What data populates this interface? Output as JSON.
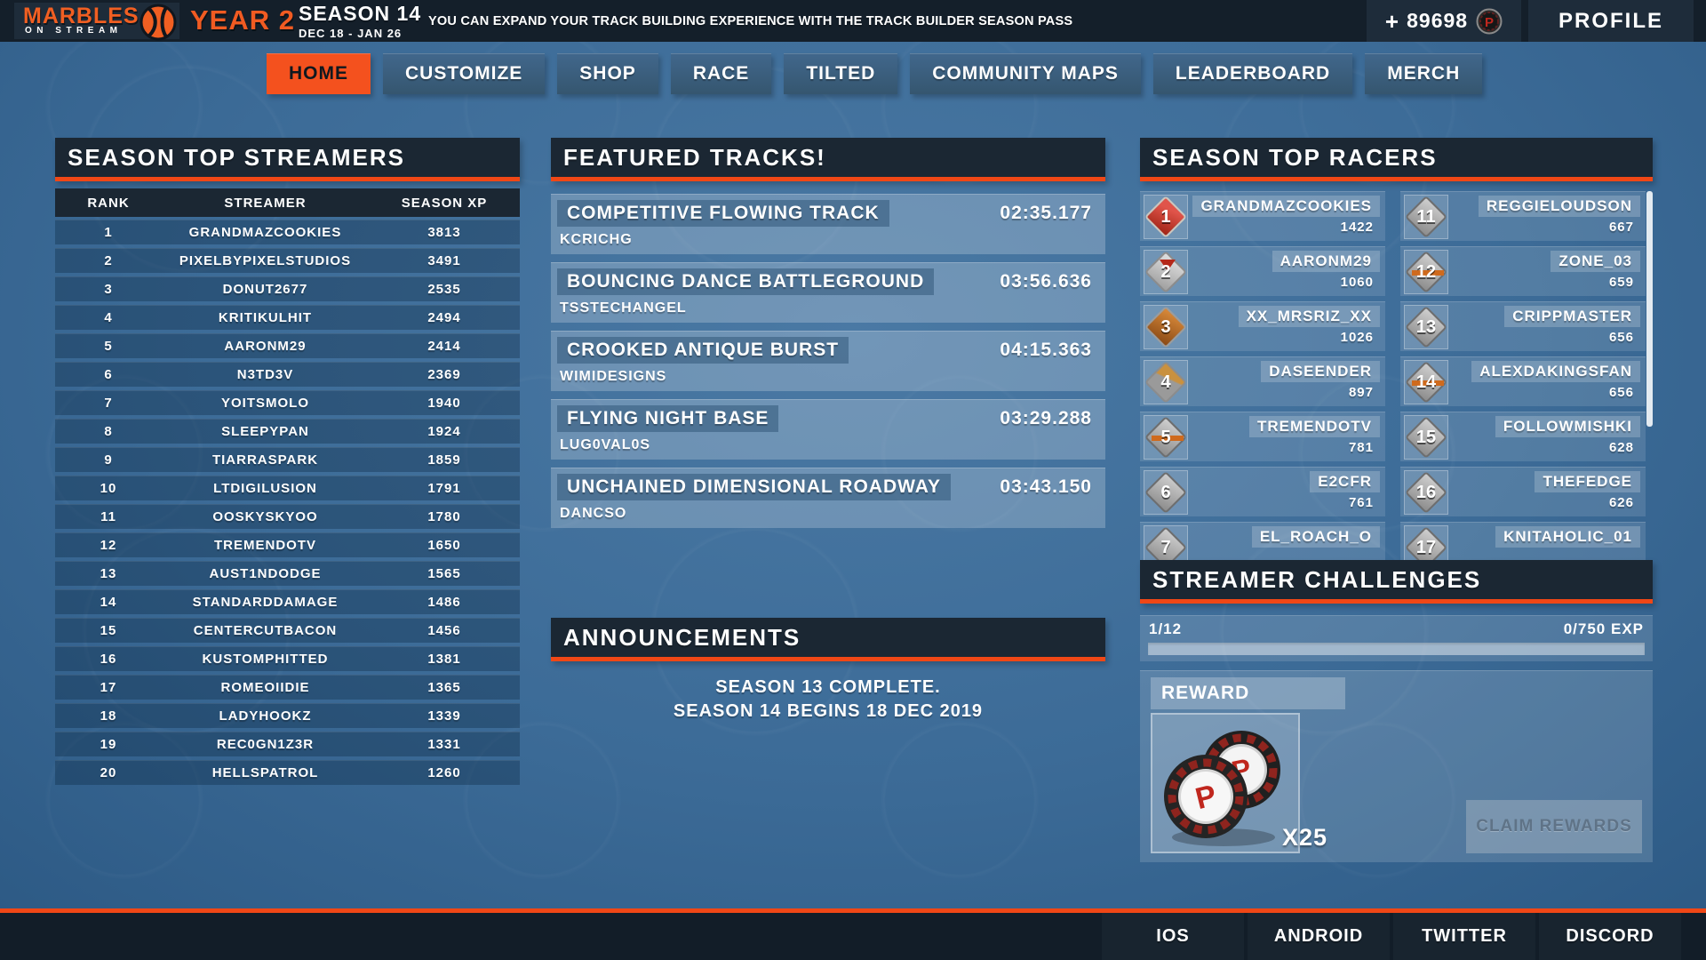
{
  "top_bar": {
    "logo_line1": "MARBLES",
    "logo_line2": "ON STREAM",
    "year": "YEAR 2",
    "season": "SEASON 14",
    "season_dates": "DEC 18 - JAN 26",
    "ticker": "YOU CAN EXPAND YOUR TRACK BUILDING EXPERIENCE WITH THE TRACK BUILDER SEASON PASS",
    "currency_plus": "+",
    "currency_amount": "89698",
    "profile_label": "PROFILE"
  },
  "nav": {
    "tabs": [
      {
        "label": "HOME",
        "active": true
      },
      {
        "label": "CUSTOMIZE",
        "active": false
      },
      {
        "label": "SHOP",
        "active": false
      },
      {
        "label": "RACE",
        "active": false
      },
      {
        "label": "TILTED",
        "active": false
      },
      {
        "label": "COMMUNITY MAPS",
        "active": false
      },
      {
        "label": "LEADERBOARD",
        "active": false
      },
      {
        "label": "MERCH",
        "active": false
      }
    ]
  },
  "streamers": {
    "title": "SEASON TOP STREAMERS",
    "columns": [
      "RANK",
      "STREAMER",
      "SEASON XP"
    ],
    "rows": [
      {
        "rank": "1",
        "name": "GRANDMAZCOOKIES",
        "xp": "3813"
      },
      {
        "rank": "2",
        "name": "PIXELBYPIXELSTUDIOS",
        "xp": "3491"
      },
      {
        "rank": "3",
        "name": "DONUT2677",
        "xp": "2535"
      },
      {
        "rank": "4",
        "name": "KRITIKULHIT",
        "xp": "2494"
      },
      {
        "rank": "5",
        "name": "AARONM29",
        "xp": "2414"
      },
      {
        "rank": "6",
        "name": "N3TD3V",
        "xp": "2369"
      },
      {
        "rank": "7",
        "name": "YOITSMOLO",
        "xp": "1940"
      },
      {
        "rank": "8",
        "name": "SLEEPYPAN",
        "xp": "1924"
      },
      {
        "rank": "9",
        "name": "TIARRASPARK",
        "xp": "1859"
      },
      {
        "rank": "10",
        "name": "LTDIGILUSION",
        "xp": "1791"
      },
      {
        "rank": "11",
        "name": "OOSKYSKYOO",
        "xp": "1780"
      },
      {
        "rank": "12",
        "name": "TREMENDOTV",
        "xp": "1650"
      },
      {
        "rank": "13",
        "name": "AUST1NDODGE",
        "xp": "1565"
      },
      {
        "rank": "14",
        "name": "STANDARDDAMAGE",
        "xp": "1486"
      },
      {
        "rank": "15",
        "name": "CENTERCUTBACON",
        "xp": "1456"
      },
      {
        "rank": "16",
        "name": "KUSTOMPHITTED",
        "xp": "1381"
      },
      {
        "rank": "17",
        "name": "ROMEOIIDIE",
        "xp": "1365"
      },
      {
        "rank": "18",
        "name": "LADYHOOKZ",
        "xp": "1339"
      },
      {
        "rank": "19",
        "name": "REC0GN1Z3R",
        "xp": "1331"
      },
      {
        "rank": "20",
        "name": "HELLSPATROL",
        "xp": "1260"
      }
    ]
  },
  "featured": {
    "title": "FEATURED TRACKS!",
    "tracks": [
      {
        "name": "COMPETITIVE FLOWING TRACK",
        "author": "KCRICHG",
        "time": "02:35.177"
      },
      {
        "name": "BOUNCING DANCE BATTLEGROUND",
        "author": "TSSTECHANGEL",
        "time": "03:56.636"
      },
      {
        "name": "CROOKED ANTIQUE BURST",
        "author": "WIMIDESIGNS",
        "time": "04:15.363"
      },
      {
        "name": "FLYING NIGHT BASE",
        "author": "LUG0VAL0S",
        "time": "03:29.288"
      },
      {
        "name": "UNCHAINED DIMENSIONAL ROADWAY",
        "author": "DANCSO",
        "time": "03:43.150"
      }
    ]
  },
  "announcements": {
    "title": "ANNOUNCEMENTS",
    "lines": [
      "SEASON 13 COMPLETE.",
      "SEASON 14 BEGINS 18 DEC 2019"
    ]
  },
  "racers": {
    "title": "SEASON TOP RACERS",
    "left": [
      {
        "rank": "1",
        "name": "GRANDMAZCOOKIES",
        "score": "1422",
        "badge": "red"
      },
      {
        "rank": "2",
        "name": "AARONM29",
        "score": "1060",
        "badge": "silver-red"
      },
      {
        "rank": "3",
        "name": "XX_MRSRIZ_XX",
        "score": "1026",
        "badge": "bronze"
      },
      {
        "rank": "4",
        "name": "DASEENDER",
        "score": "897",
        "badge": "bronze-gray"
      },
      {
        "rank": "5",
        "name": "TREMENDOTV",
        "score": "781",
        "badge": "gray-stripe"
      },
      {
        "rank": "6",
        "name": "E2CFR",
        "score": "761",
        "badge": "gray"
      },
      {
        "rank": "7",
        "name": "EL_ROACH_O",
        "score": "",
        "badge": "gray"
      }
    ],
    "right": [
      {
        "rank": "11",
        "name": "REGGIELOUDSON",
        "score": "667",
        "badge": "gray"
      },
      {
        "rank": "12",
        "name": "ZONE_03",
        "score": "659",
        "badge": "gray-stripe"
      },
      {
        "rank": "13",
        "name": "CRIPPMASTER",
        "score": "656",
        "badge": "gray"
      },
      {
        "rank": "14",
        "name": "ALEXDAKINGSFAN",
        "score": "656",
        "badge": "gray-stripe"
      },
      {
        "rank": "15",
        "name": "FOLLOWMISHKI",
        "score": "628",
        "badge": "gray"
      },
      {
        "rank": "16",
        "name": "THEFEDGE",
        "score": "626",
        "badge": "gray"
      },
      {
        "rank": "17",
        "name": "KNITAHOLIC_01",
        "score": "",
        "badge": "gray"
      }
    ]
  },
  "challenges": {
    "title": "STREAMER CHALLENGES",
    "progress_count": "1/12",
    "progress_exp": "0/750 EXP",
    "reward_label": "REWARD",
    "reward_qty": "X25",
    "claim_label": "CLAIM REWARDS"
  },
  "footer": {
    "links": [
      "IOS",
      "ANDROID",
      "TWITTER",
      "DISCORD"
    ]
  },
  "colors": {
    "accent_orange": "#f04716",
    "active_tab_orange": "#f4511e",
    "panel_header_bg": "#1b2733",
    "top_bar_bg": "#141f2a",
    "background_blue": "#3c6b97",
    "logo_orange": "#f15f22",
    "marble_coin_red": "#c0271e"
  }
}
